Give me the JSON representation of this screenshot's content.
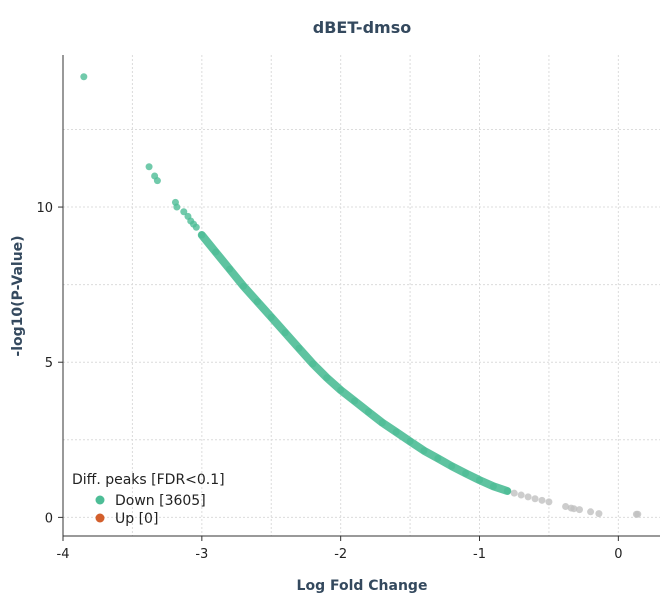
{
  "chart_data": {
    "type": "scatter",
    "title": "dBET-dmso",
    "xlabel": "Log Fold Change",
    "ylabel": "-log10(P-Value)",
    "xlim": [
      -4,
      0.3
    ],
    "ylim": [
      -0.6,
      14.9
    ],
    "xticks": [
      -4,
      -3,
      -2,
      -1,
      0
    ],
    "yticks": [
      0,
      5,
      10
    ],
    "grid": true,
    "legend": {
      "title": "Diff. peaks [FDR<0.1]",
      "placement": "bottom-left",
      "entries": [
        {
          "label": "Down [3605]",
          "color": "#4dbd96"
        },
        {
          "label": "Up [0]",
          "color": "#d35f2c"
        }
      ]
    },
    "series": [
      {
        "name": "Down [3605]",
        "color": "#4dbd96",
        "x": [
          -3.85,
          -3.38,
          -3.34,
          -3.32,
          -3.19,
          -3.18,
          -3.13,
          -3.1,
          -3.08,
          -3.06,
          -3.04,
          -3.0,
          -2.9,
          -2.8,
          -2.7,
          -2.6,
          -2.5,
          -2.4,
          -2.3,
          -2.2,
          -2.1,
          -2.0,
          -1.9,
          -1.8,
          -1.7,
          -1.6,
          -1.5,
          -1.4,
          -1.3,
          -1.2,
          -1.1,
          -1.0,
          -0.9,
          -0.8
        ],
        "y": [
          14.2,
          11.3,
          11.0,
          10.85,
          10.15,
          10.0,
          9.85,
          9.7,
          9.55,
          9.45,
          9.35,
          9.1,
          8.55,
          8.0,
          7.45,
          6.95,
          6.45,
          5.95,
          5.45,
          4.95,
          4.5,
          4.1,
          3.75,
          3.4,
          3.05,
          2.75,
          2.45,
          2.15,
          1.9,
          1.65,
          1.42,
          1.2,
          1.0,
          0.85
        ]
      },
      {
        "name": "",
        "color": "#c0c0c0",
        "x": [
          -0.8,
          -0.75,
          -0.7,
          -0.65,
          -0.6,
          -0.55,
          -0.5,
          -0.38,
          -0.34,
          -0.32,
          -0.28,
          -0.2,
          -0.14,
          0.13,
          0.14
        ],
        "y": [
          0.85,
          0.78,
          0.72,
          0.66,
          0.6,
          0.55,
          0.5,
          0.35,
          0.3,
          0.28,
          0.25,
          0.18,
          0.12,
          0.1,
          0.1
        ]
      }
    ]
  }
}
